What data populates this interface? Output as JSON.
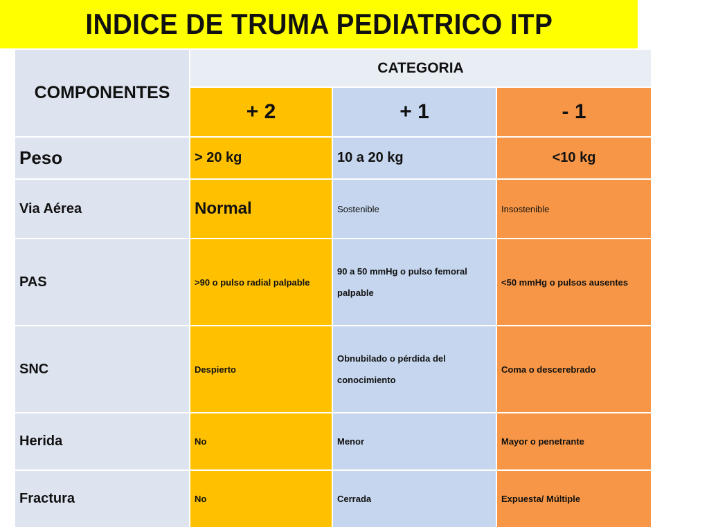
{
  "title": "INDICE DE TRUMA PEDIATRICO ITP",
  "header": {
    "componentes": "COMPONENTES",
    "categoria": "CATEGORIA",
    "scores": [
      "+ 2",
      "+ 1",
      "- 1"
    ]
  },
  "rows": [
    {
      "label": "Peso",
      "plus2": "> 20 kg",
      "plus1": "10 a 20 kg",
      "minus1": "<10 kg"
    },
    {
      "label": "Via Aérea",
      "plus2": "Normal",
      "plus1": "Sostenible",
      "minus1": "Insostenible"
    },
    {
      "label": "PAS",
      "plus2": ">90 o pulso radial palpable",
      "plus1": "90 a 50 mmHg o pulso femoral palpable",
      "minus1": "<50 mmHg o pulsos ausentes"
    },
    {
      "label": "SNC",
      "plus2": "Despierto",
      "plus1": "Obnubilado o pérdida del conocimiento",
      "minus1": "Coma o descerebrado"
    },
    {
      "label": "Herida",
      "plus2": "No",
      "plus1": "Menor",
      "minus1": "Mayor o penetrante"
    },
    {
      "label": "Fractura",
      "plus2": "No",
      "plus1": "Cerrada",
      "minus1": "Expuesta/ Múltiple"
    }
  ],
  "colors": {
    "title_bg": "#ffff00",
    "componentes_bg": "#dde4ef",
    "plus2_bg": "#ffc000",
    "plus1_bg": "#c5d6ee",
    "minus1_bg": "#f79646"
  }
}
